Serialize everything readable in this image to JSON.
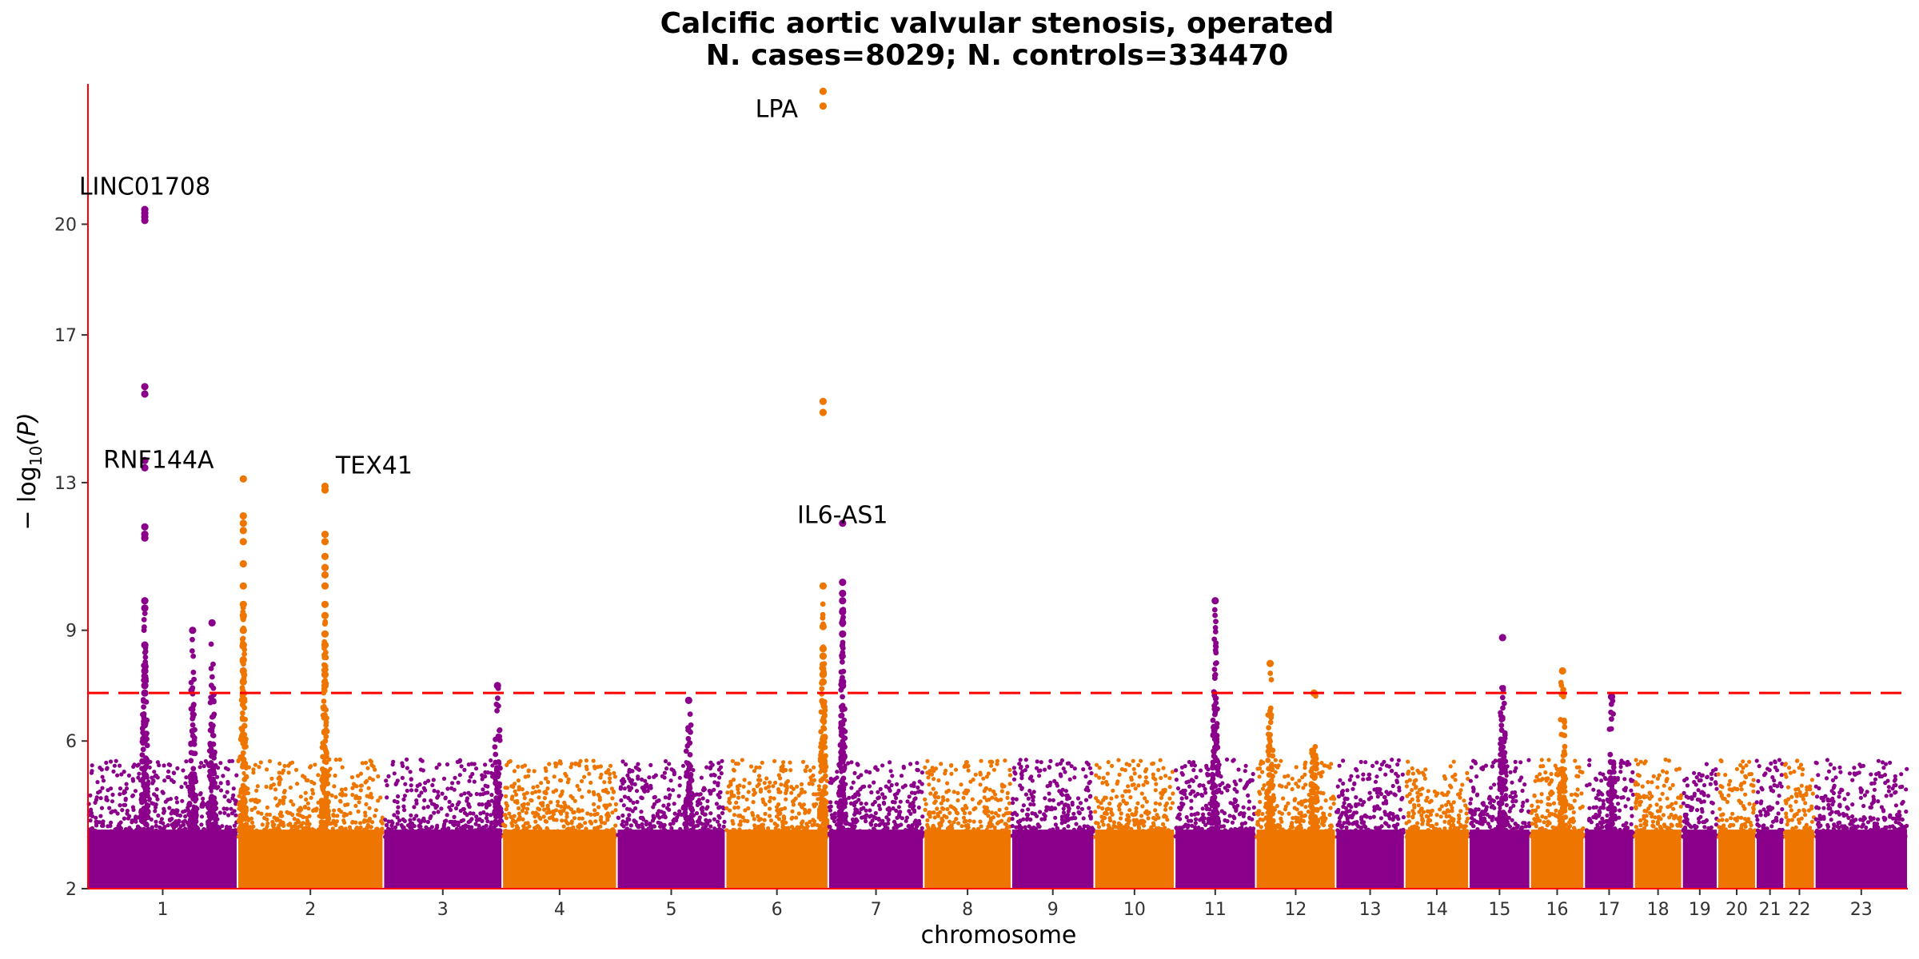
{
  "chart_data": {
    "type": "scatter",
    "title": "Calcific aortic valvular stenosis, operated",
    "subtitle": "N. cases=8029; N. controls=334470",
    "xlabel": "chromosome",
    "ylabel": {
      "prefix": "− log",
      "sub": "10",
      "suffix": "(P)"
    },
    "ylim": [
      2,
      23.8
    ],
    "yticks": [
      2,
      6,
      9,
      13,
      17,
      20
    ],
    "grid": false,
    "legend": "none",
    "colors": {
      "odd": "#8b008b",
      "even": "#ee7600",
      "threshold": "#ff0000",
      "axis": "#ff0000"
    },
    "threshold": 7.3,
    "chromosomes": [
      {
        "label": "1",
        "length": 249
      },
      {
        "label": "2",
        "length": 243
      },
      {
        "label": "3",
        "length": 198
      },
      {
        "label": "4",
        "length": 191
      },
      {
        "label": "5",
        "length": 181
      },
      {
        "label": "6",
        "length": 171
      },
      {
        "label": "7",
        "length": 159
      },
      {
        "label": "8",
        "length": 146
      },
      {
        "label": "9",
        "length": 138
      },
      {
        "label": "10",
        "length": 134
      },
      {
        "label": "11",
        "length": 135
      },
      {
        "label": "12",
        "length": 133
      },
      {
        "label": "13",
        "length": 115
      },
      {
        "label": "14",
        "length": 107
      },
      {
        "label": "15",
        "length": 102
      },
      {
        "label": "16",
        "length": 90
      },
      {
        "label": "17",
        "length": 83
      },
      {
        "label": "18",
        "length": 80
      },
      {
        "label": "19",
        "length": 59
      },
      {
        "label": "20",
        "length": 64
      },
      {
        "label": "21",
        "length": 47
      },
      {
        "label": "22",
        "length": 51
      },
      {
        "label": "23",
        "length": 155
      }
    ],
    "peaks": [
      {
        "chr": 1,
        "pos": 0.38,
        "max": 20.4,
        "gene": "LINC01708",
        "hits": [
          20.4,
          20.3,
          20.2,
          20.1,
          15.6,
          15.4,
          13.6,
          13.4,
          11.8,
          11.6,
          11.5,
          9.8,
          9.6,
          8.6,
          7.9,
          7.5,
          7.3
        ]
      },
      {
        "chr": 1,
        "pos": 0.7,
        "max": 9.0,
        "gene": null
      },
      {
        "chr": 1,
        "pos": 0.83,
        "max": 9.2,
        "gene": null
      },
      {
        "chr": 2,
        "pos": 0.04,
        "max": 13.1,
        "gene": "RNF144A",
        "hits": [
          13.1,
          12.1,
          11.9,
          11.7,
          11.4,
          10.8,
          10.2,
          9.7,
          9.4,
          9.0,
          8.6,
          8.2,
          7.9,
          7.6
        ]
      },
      {
        "chr": 2,
        "pos": 0.6,
        "max": 12.9,
        "gene": "TEX41",
        "hits": [
          12.9,
          12.8,
          11.6,
          11.4,
          11.0,
          10.7,
          10.5,
          10.2,
          9.7,
          9.4,
          8.9,
          8.6,
          7.8,
          7.5
        ]
      },
      {
        "chr": 3,
        "pos": 0.96,
        "max": 7.5,
        "gene": null
      },
      {
        "chr": 5,
        "pos": 0.66,
        "max": 7.1,
        "gene": null
      },
      {
        "chr": 6,
        "pos": 0.95,
        "max": 23.6,
        "gene": "LPA",
        "hits": [
          23.6,
          23.2,
          15.2,
          14.9,
          10.2,
          9.1,
          8.5,
          8.3,
          7.8,
          7.6
        ]
      },
      {
        "chr": 7,
        "pos": 0.15,
        "max": 11.9,
        "gene": "IL6-AS1",
        "hits": [
          11.9,
          10.3,
          10.0,
          9.8,
          9.5,
          9.2,
          8.9,
          7.6,
          7.5
        ]
      },
      {
        "chr": 11,
        "pos": 0.5,
        "max": 9.8,
        "gene": null
      },
      {
        "chr": 12,
        "pos": 0.18,
        "max": 8.1,
        "gene": null
      },
      {
        "chr": 12,
        "pos": 0.73,
        "max": 7.3,
        "gene": null
      },
      {
        "chr": 15,
        "pos": 0.55,
        "max": 8.8,
        "gene": null
      },
      {
        "chr": 16,
        "pos": 0.6,
        "max": 7.9,
        "gene": null
      },
      {
        "chr": 17,
        "pos": 0.55,
        "max": 7.2,
        "gene": null
      }
    ],
    "labels": [
      {
        "gene": "LINC01708",
        "chr": 1,
        "pos": 0.38,
        "y": 20.8,
        "anchor": "middle"
      },
      {
        "gene": "RNF144A",
        "chr": 1,
        "pos": 0.06,
        "y": 13.4,
        "anchor": "start"
      },
      {
        "gene": "TEX41",
        "chr": 2,
        "pos": 0.63,
        "y": 13.25,
        "anchor": "start"
      },
      {
        "gene": "LPA",
        "chr": 6,
        "pos": 0.83,
        "y": 22.9,
        "anchor": "end"
      },
      {
        "gene": "IL6-AS1",
        "chr": 7,
        "pos": 0.15,
        "y": 11.9,
        "anchor": "middle"
      }
    ]
  }
}
